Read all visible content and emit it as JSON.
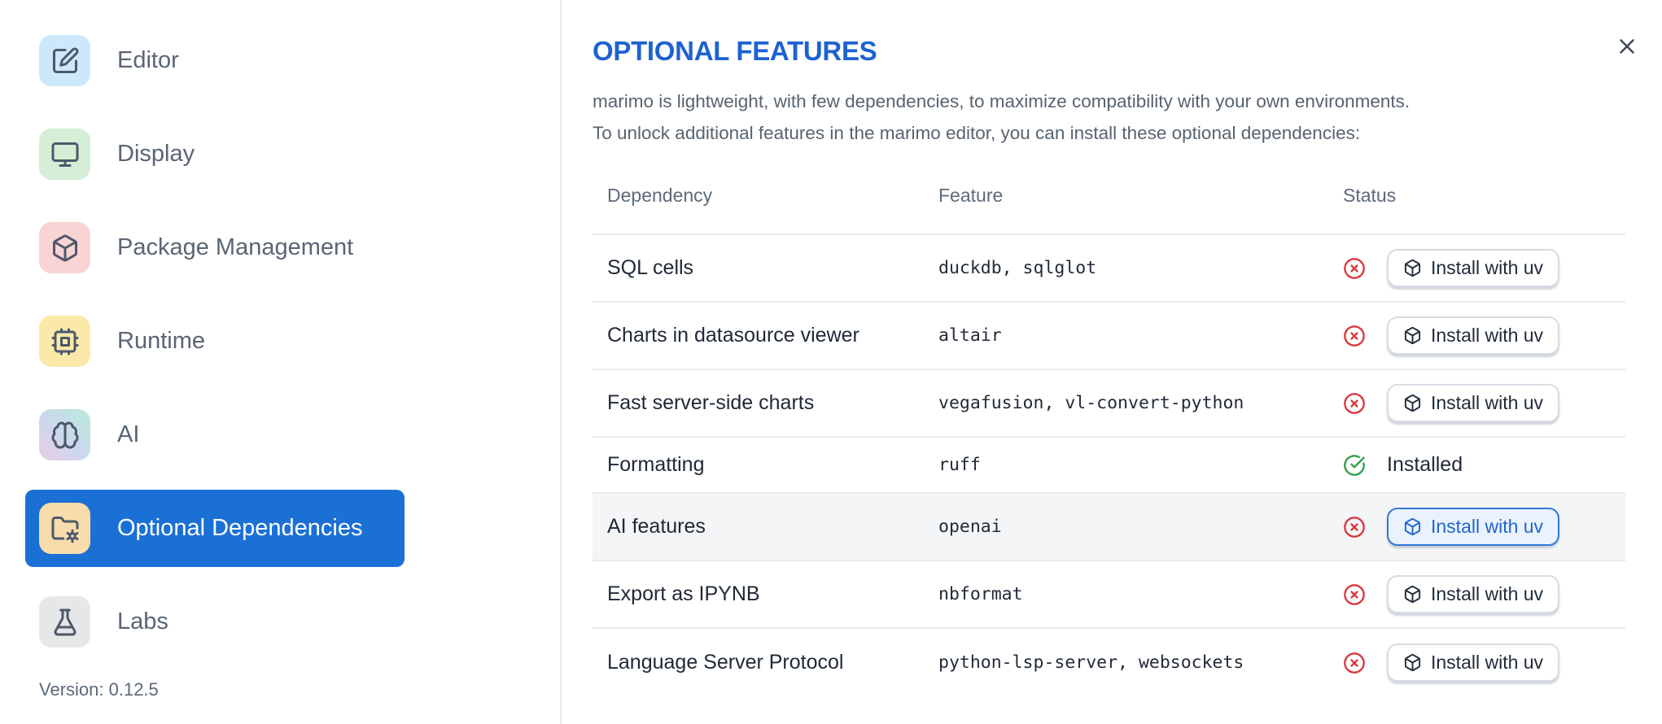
{
  "sidebar": {
    "items": [
      {
        "label": "Editor",
        "icon": "square-pen-icon",
        "icon_bg": "#cde8fa",
        "selected": false
      },
      {
        "label": "Display",
        "icon": "monitor-icon",
        "icon_bg": "#d6edd6",
        "selected": false
      },
      {
        "label": "Package Management",
        "icon": "package-icon",
        "icon_bg": "#f9d4d4",
        "selected": false
      },
      {
        "label": "Runtime",
        "icon": "cpu-icon",
        "icon_bg": "#fbe9a9",
        "selected": false
      },
      {
        "label": "AI",
        "icon": "brain-icon",
        "icon_bg": "gradient",
        "selected": false
      },
      {
        "label": "Optional Dependencies",
        "icon": "folder-cog-icon",
        "icon_bg": "#f8dcab",
        "selected": true
      },
      {
        "label": "Labs",
        "icon": "flask-icon",
        "icon_bg": "#e6e7e9",
        "selected": false
      }
    ],
    "version_label": "Version: 0.12.5"
  },
  "panel": {
    "title": "OPTIONAL FEATURES",
    "description_lines": [
      "marimo is lightweight, with few dependencies, to maximize compatibility with your own environments.",
      "To unlock additional features in the marimo editor, you can install these optional dependencies:"
    ],
    "table": {
      "headers": [
        "Dependency",
        "Feature",
        "Status"
      ],
      "rows": [
        {
          "dependency": "SQL cells",
          "feature": "duckdb, sqlglot",
          "status": "missing",
          "action": "Install with uv",
          "highlighted": false
        },
        {
          "dependency": "Charts in datasource viewer",
          "feature": "altair",
          "status": "missing",
          "action": "Install with uv",
          "highlighted": false
        },
        {
          "dependency": "Fast server-side charts",
          "feature": "vegafusion, vl-convert-python",
          "status": "missing",
          "action": "Install with uv",
          "highlighted": false
        },
        {
          "dependency": "Formatting",
          "feature": "ruff",
          "status": "installed",
          "status_label": "Installed",
          "highlighted": false
        },
        {
          "dependency": "AI features",
          "feature": "openai",
          "status": "missing",
          "action": "Install with uv",
          "highlighted": true
        },
        {
          "dependency": "Export as IPYNB",
          "feature": "nbformat",
          "status": "missing",
          "action": "Install with uv",
          "highlighted": false
        },
        {
          "dependency": "Language Server Protocol",
          "feature": "python-lsp-server, websockets",
          "status": "missing",
          "action": "Install with uv",
          "highlighted": false
        }
      ]
    }
  },
  "colors": {
    "accent_blue": "#1b70d5",
    "title_blue": "#1d62d2",
    "error_red": "#d8383f",
    "success_green": "#2e9e47",
    "button_blue_border": "#2f7ad7",
    "button_blue_bg": "#eaf2fd",
    "row_highlight": "#f4f5f7"
  }
}
